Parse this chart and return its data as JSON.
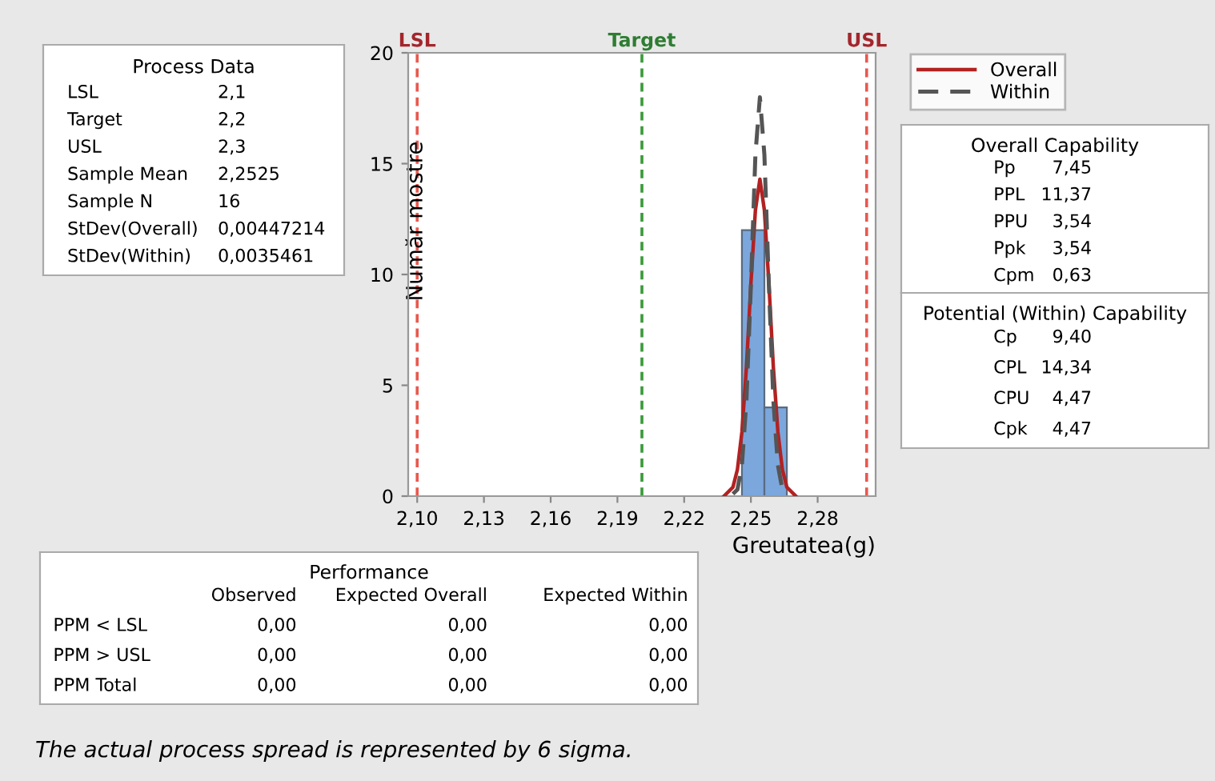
{
  "chart_data": [
    {
      "type": "histogram",
      "xlabel": "Greutatea(g)",
      "ylabel": "Număr mostre",
      "bins": [
        2.2445,
        2.2545,
        2.2645
      ],
      "values": [
        12,
        4
      ],
      "color": "#7ba7dd",
      "series": [
        {
          "name": "Overall",
          "type": "line",
          "color": "#b22222",
          "line_style": "solid",
          "x": [
            2.2365,
            2.2405,
            2.2425,
            2.2445,
            2.2465,
            2.2485,
            2.2505,
            2.2525,
            2.2545,
            2.2565,
            2.2585,
            2.2605,
            2.2625,
            2.2645,
            2.2685
          ],
          "values": [
            0.0,
            0.4,
            1.2,
            2.9,
            5.8,
            9.6,
            12.9,
            14.3,
            12.9,
            9.6,
            5.8,
            2.9,
            1.2,
            0.4,
            0.0
          ]
        },
        {
          "name": "Within",
          "type": "line",
          "color": "#555555",
          "line_style": "dashed",
          "x": [
            2.2405,
            2.2425,
            2.2445,
            2.2465,
            2.2485,
            2.2505,
            2.2525,
            2.2545,
            2.2565,
            2.2585,
            2.2605,
            2.2625,
            2.2645
          ],
          "values": [
            0.1,
            0.3,
            1.4,
            4.3,
            9.5,
            15.4,
            18.0,
            15.4,
            9.5,
            4.3,
            1.4,
            0.3,
            0.1
          ]
        }
      ],
      "xlim": [
        2.096,
        2.304
      ],
      "ylim": [
        0,
        20
      ],
      "xticks": [
        {
          "value": 2.1,
          "label": "2,10"
        },
        {
          "value": 2.1297,
          "label": "2,13"
        },
        {
          "value": 2.1594,
          "label": "2,16"
        },
        {
          "value": 2.1891,
          "label": "2,19"
        },
        {
          "value": 2.2188,
          "label": "2,22"
        },
        {
          "value": 2.2485,
          "label": "2,25"
        },
        {
          "value": 2.2782,
          "label": "2,28"
        }
      ],
      "yticks": [
        0,
        5,
        10,
        15,
        20
      ],
      "ref_lines": [
        {
          "axis": "x",
          "value": 2.1,
          "label": "LSL",
          "color": "#e8584f",
          "line_style": "dashed"
        },
        {
          "axis": "x",
          "value": 2.2,
          "label": "Target",
          "color": "#3a9a3a",
          "line_style": "dashed"
        },
        {
          "axis": "x",
          "value": 2.3,
          "label": "USL",
          "color": "#e8584f",
          "line_style": "dashed"
        }
      ],
      "grid": false,
      "legend": "top right",
      "annotations": [
        "The actual process spread is represented by 6 sigma."
      ]
    },
    {
      "type": "other",
      "title": "Process Data",
      "annotations": [
        "LSL\t2,1",
        "Target\t2,2",
        "USL\t2,3",
        "Sample Mean\t2,2525",
        "Sample N\t16",
        "StDev(Overall)\t0,00447214",
        "StDev(Within)\t0,0035461"
      ]
    },
    {
      "type": "other",
      "title": "Overall Capability",
      "annotations": [
        "Pp\t7,45",
        "PPL\t11,37",
        "PPU\t3,54",
        "Ppk\t3,54",
        "Cpm\t0,63"
      ]
    },
    {
      "type": "other",
      "title": "Potential (Within) Capability",
      "annotations": [
        "Cp\t9,40",
        "CPL\t14,34",
        "CPU\t4,47",
        "Cpk\t4,47"
      ]
    },
    {
      "type": "other",
      "title": "Performance",
      "annotations": [
        "\tObserved\tExpected Overall\tExpected Within",
        "PPM < LSL\t0,00\t0,00\t0,00",
        "PPM > USL\t0,00\t0,00\t0,00",
        "PPM Total\t0,00\t0,00\t0,00"
      ]
    }
  ]
}
